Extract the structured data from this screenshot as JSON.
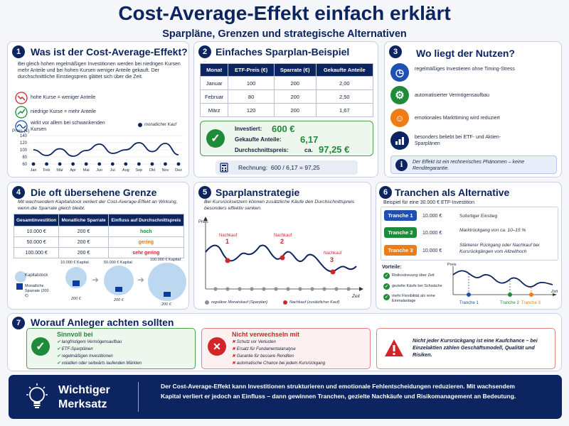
{
  "title": "Cost-Average-Effekt einfach erklärt",
  "subtitle": "Sparpläne, Grenzen und strategische Alternativen",
  "s1": {
    "num": "1",
    "heading": "Was ist der Cost-Average-Effekt?",
    "intro": "Bei gleich hohen regelmäßigen Investitionen werden bei niedrigen Kursen mehr Anteile und bei hohen Kursen weniger Anteile gekauft. Der durchschnittliche Einstiegspreis glättet sich über die Zeit.",
    "b1": "hohe Kurse = weniger Anteile",
    "b2": "niedrige Kurse = mehr Anteile",
    "b3": "wirkt vor allem bei schwankenden Kursen",
    "legend": "monatlicher Kauf",
    "ylabel": "Preis (€)",
    "chart_data": {
      "type": "line",
      "ylabel": "Preis (€)",
      "ylim": [
        60,
        140
      ],
      "yticks": [
        "140",
        "120",
        "100",
        "80",
        "60"
      ],
      "categories": [
        "Jan",
        "Feb",
        "Mär",
        "Apr",
        "Mai",
        "Jun",
        "Jul",
        "Aug",
        "Sep",
        "Okt",
        "Nov",
        "Dez"
      ],
      "values": [
        100,
        84,
        103,
        82,
        98,
        116,
        90,
        100,
        120,
        95,
        118,
        86
      ]
    }
  },
  "s2": {
    "num": "2",
    "heading": "Einfaches Sparplan-Beispiel",
    "columns": [
      "Monat",
      "ETF-Preis (€)",
      "Sparrate (€)",
      "Gekaufte Anteile"
    ],
    "rows": [
      [
        "Januar",
        "100",
        "200",
        "2,00"
      ],
      [
        "Februar",
        "80",
        "200",
        "2,50"
      ],
      [
        "März",
        "120",
        "200",
        "1,67"
      ]
    ],
    "l1": "Investiert:",
    "v1": "600 €",
    "l2": "Gekaufte Anteile:",
    "v2": "6,17",
    "l3": "Durchschnittspreis:",
    "v3pre": "ca.",
    "v3": "97,25 €",
    "calc": "Rechnung:  600 / 6,17 = 97,25"
  },
  "s3": {
    "num": "3",
    "heading": "Wo liegt der Nutzen?",
    "i1": "regelmäßiges Investieren ohne Timing-Stress",
    "i2": "automatisierter Vermögensaufbau",
    "i3": "emotionales Markttiming wird reduziert",
    "i4": "besonders beliebt bei ETF- und Aktien-Sparplänen",
    "note": "Der Effekt ist ein rechnerisches Phänomen – keine Renditegarantie.",
    "info": "i"
  },
  "s4": {
    "num": "4",
    "heading": "Die oft übersehene Grenze",
    "intro": "Mit wachsendem Kapitalstock verliert der Cost-Average-Effekt an Wirkung, wenn die Sparrate gleich bleibt.",
    "columns": [
      "Gesamtinvestition",
      "Monatliche Sparrate",
      "Einfluss auf Durchschnittspreis"
    ],
    "rows": [
      [
        "10.000 €",
        "200 €",
        "hoch"
      ],
      [
        "50.000 €",
        "200 €",
        "gering"
      ],
      [
        "100.000 €",
        "200 €",
        "sehr gering"
      ]
    ],
    "effect_colors": [
      "#1f8a3a",
      "#e07a10",
      "#d0262a"
    ],
    "leg1": "Kapitalstock",
    "leg2": "Monatliche Sparrate (200 €)",
    "c1": "10.000 € Kapital",
    "c2": "50.000 € Kapital",
    "c3": "100.000 € Kapital",
    "r1": "200 €",
    "r2": "200 €",
    "r3": "200 €"
  },
  "s5": {
    "num": "5",
    "heading": "Sparplanstrategie",
    "intro": "Bei Kursrücksetzern können zusätzliche Käufe den Durchschnittspreis besonders effektiv senken.",
    "ylabel": "Preis",
    "xlabel": "Zeit",
    "n1": "Nachkauf",
    "k1": "1",
    "n2": "Nachkauf",
    "k2": "2",
    "n3": "Nachkauf",
    "k3": "3",
    "leg1": "regulärer Monatskauf (Sparplan)",
    "leg2": "Nachkauf (zusätzlicher Kauf)"
  },
  "s6": {
    "num": "6",
    "heading": "Tranchen als Alternative",
    "intro": "Beispiel für eine 30.000 € ETF-Investition",
    "tranches": [
      {
        "label": "Tranche 1",
        "amount": "10.000 €",
        "desc": "Sofortiger Einstieg",
        "color": "#1f4fb0"
      },
      {
        "label": "Tranche 2",
        "amount": "10.000 €",
        "desc": "Marktrückgang von ca. 10–15 %",
        "color": "#1f8a3a"
      },
      {
        "label": "Tranche 3",
        "amount": "10.000 €",
        "desc": "Stärkerer Rückgang oder Nachkauf bei Kursrückgängen vom Allzeithoch",
        "color": "#ee7d17"
      }
    ],
    "adv": "Vorteile:",
    "a1": "Risikostreuung über Zeit",
    "a2": "gezielte Käufe bei Schwäche",
    "a3": "mehr Flexibilität als reine Einmalanlage",
    "ylabel": "Preis",
    "xlabel": "Zeit",
    "t1": "Tranche 1",
    "t2": "Tranche 2",
    "t3": "Tranche 3"
  },
  "s7": {
    "num": "7",
    "heading": "Worauf Anleger achten sollten",
    "g_head": "Sinnvoll bei",
    "g": [
      "langfristigem Vermögensaufbau",
      "ETF-Sparplänen",
      "regelmäßigen Investitionen",
      "volatilen oder seitwärts laufenden Märkten"
    ],
    "r_head": "Nicht verwechseln mit",
    "r": [
      "Schutz vor Verlusten",
      "Ersatz für Fundamentalanalyse",
      "Garantie für bessere Renditen",
      "automatische Chance bei jedem Kursrückgang"
    ],
    "warn": "Nicht jeder Kursrückgang ist eine Kaufchance – bei Einzelaktien zählen Geschäftsmodell, Qualität und Risiken."
  },
  "merk": {
    "label1": "Wichtiger",
    "label2": "Merksatz",
    "text": "Der Cost-Average-Effekt kann Investitionen strukturieren und emotionale Fehlentscheidungen  reduzieren. Mit wachsendem Kapital verliert er jedoch an Einfluss – dann gewinnen Tranchen, gezielte Nachkäufe und Risikomanagement an Bedeutung."
  }
}
